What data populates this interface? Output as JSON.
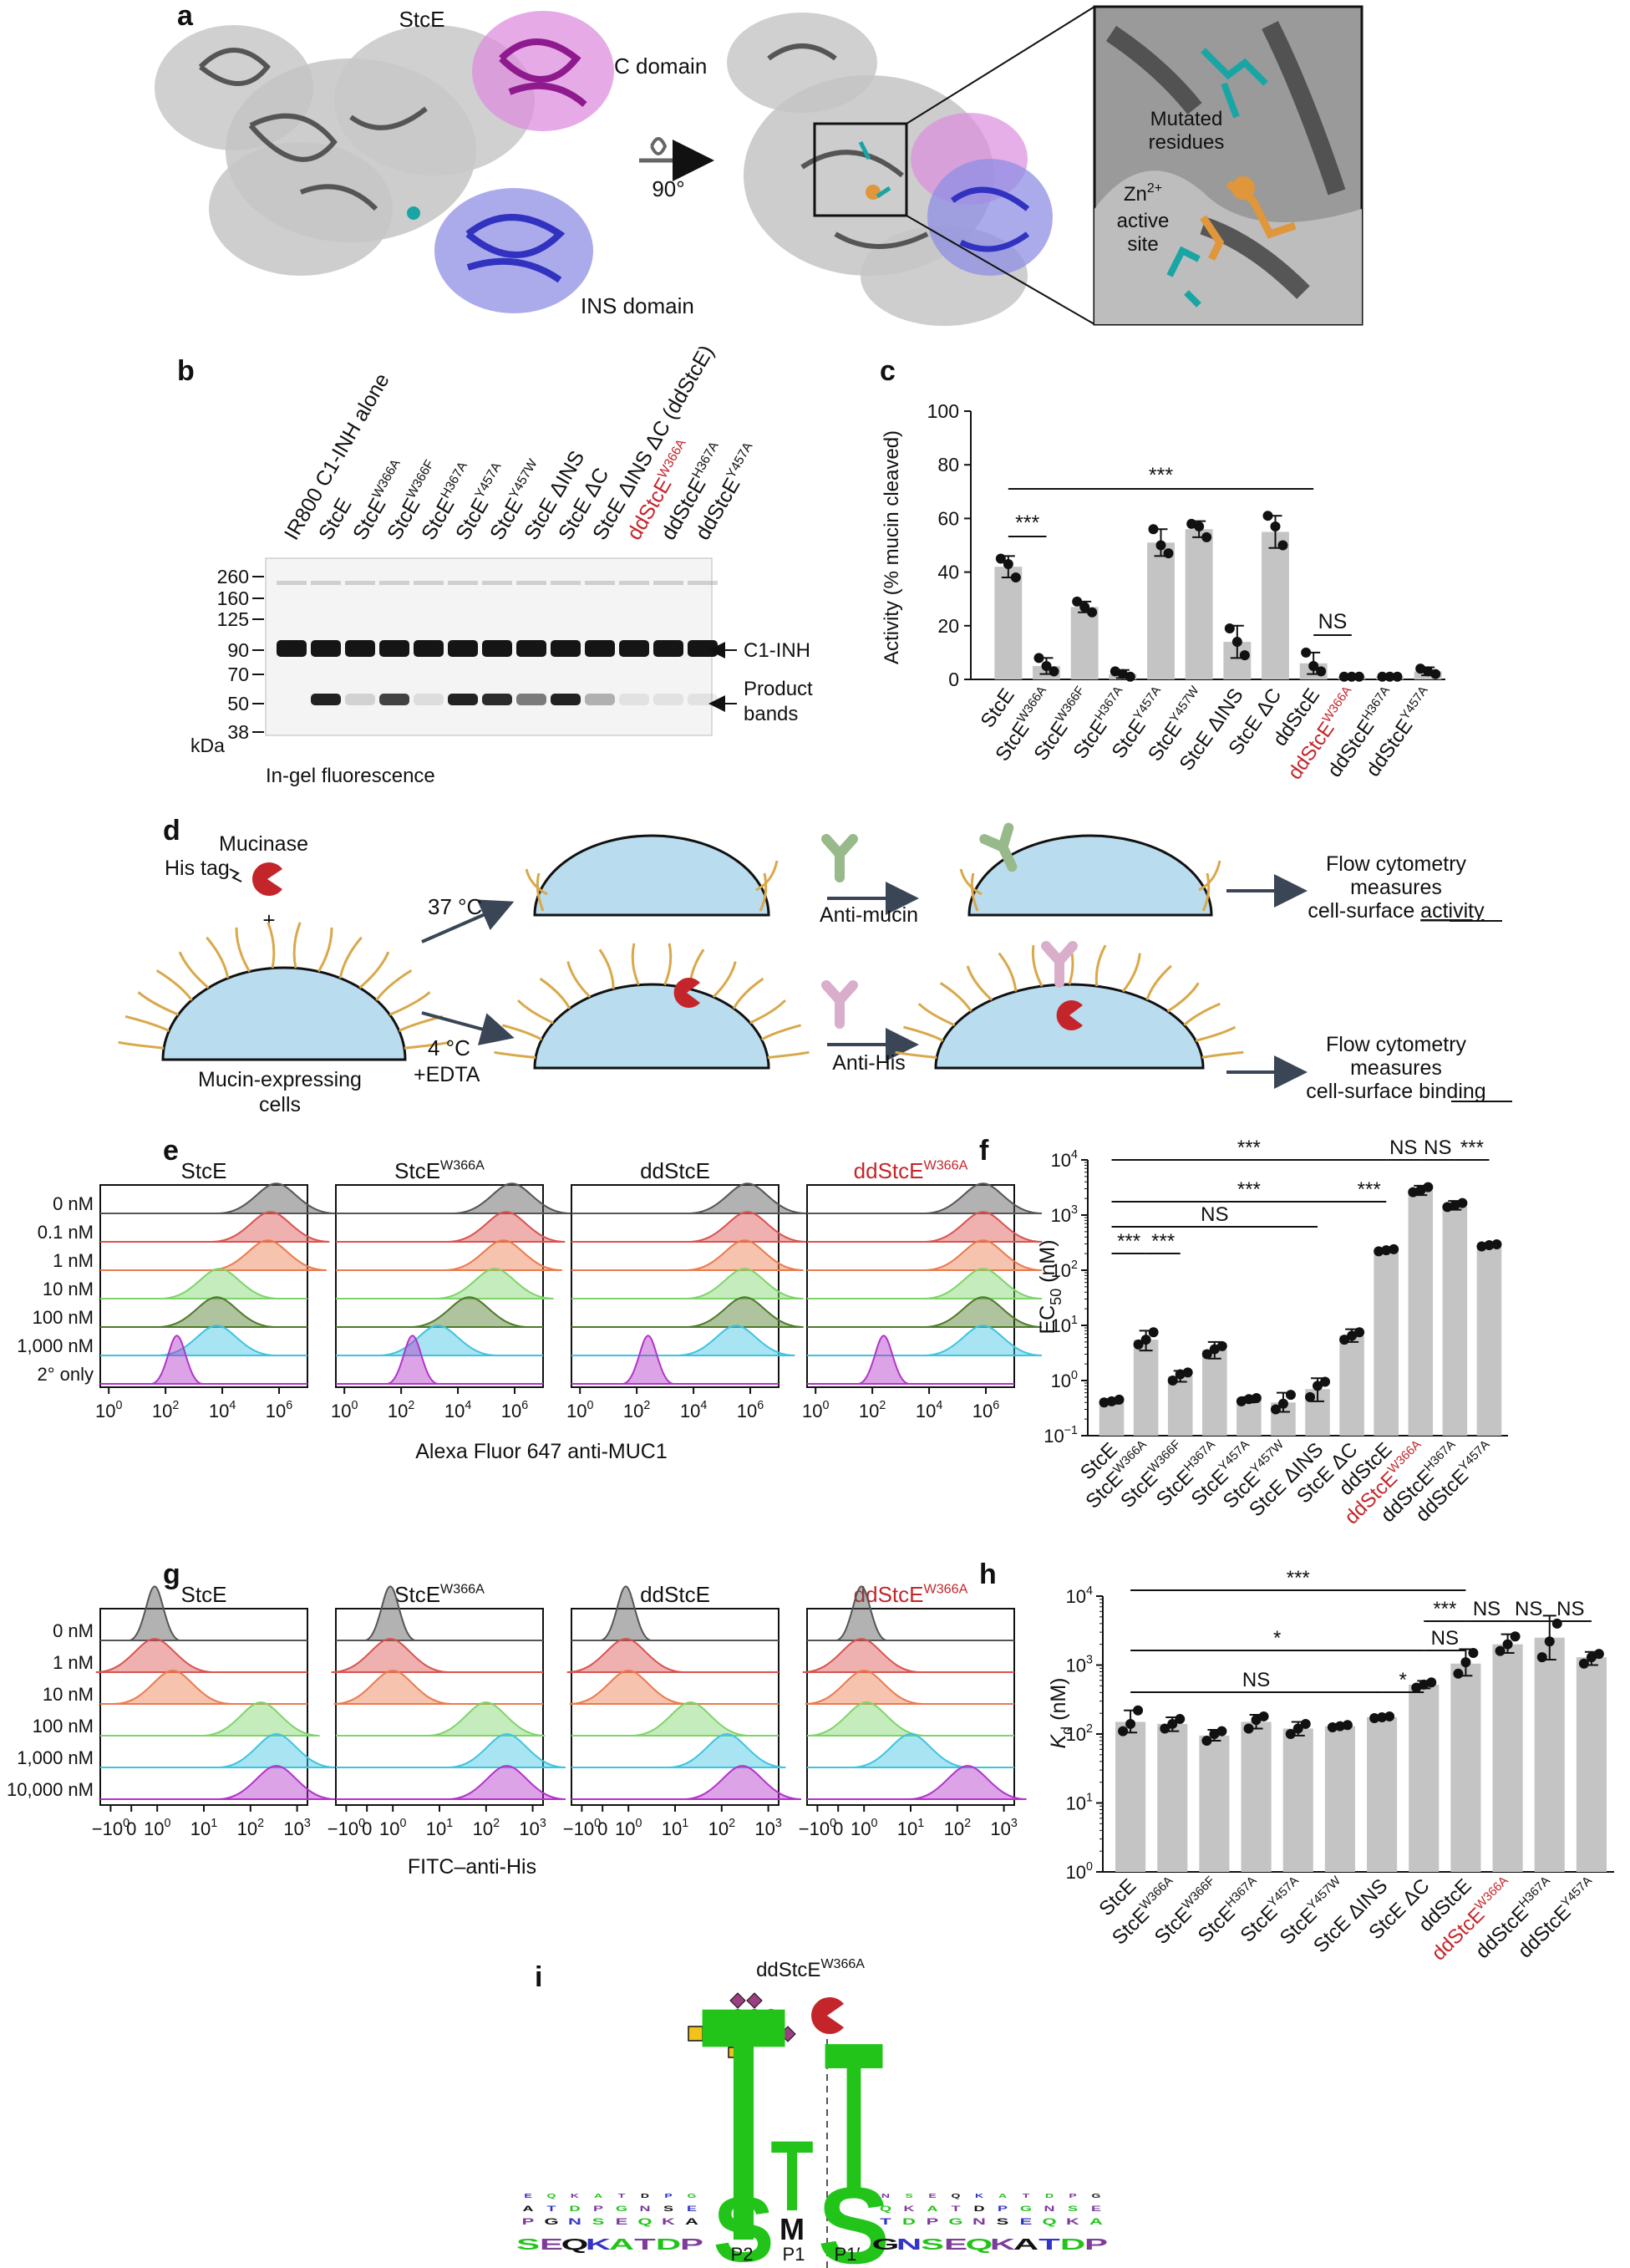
{
  "panels": {
    "a": "a",
    "b": "b",
    "c": "c",
    "d": "d",
    "e": "e",
    "f": "f",
    "g": "g",
    "h": "h",
    "i": "i"
  },
  "panel_a": {
    "protein": "StcE",
    "c_domain": "C domain",
    "ins_domain": "INS domain",
    "rotation": "90°",
    "mutated_line1": "Mutated",
    "mutated_line2": "residues",
    "zn_base": "Zn",
    "zn_sup": "2+",
    "active_line1": "active",
    "active_line2": "site",
    "colors": {
      "c_domain": "#9b1f9b",
      "ins_domain": "#3434c8",
      "mutated": "#1aa5a5",
      "active": "#e0963a",
      "protein": "#555555"
    }
  },
  "panel_b": {
    "lanes": [
      {
        "base": "IR800 C1-INH alone",
        "sup": "",
        "suffix": "",
        "red": false
      },
      {
        "base": "StcE",
        "sup": "",
        "suffix": "",
        "red": false
      },
      {
        "base": "StcE",
        "sup": "W366A",
        "suffix": "",
        "red": false
      },
      {
        "base": "StcE",
        "sup": "W366F",
        "suffix": "",
        "red": false
      },
      {
        "base": "StcE",
        "sup": "H367A",
        "suffix": "",
        "red": false
      },
      {
        "base": "StcE",
        "sup": "Y457A",
        "suffix": "",
        "red": false
      },
      {
        "base": "StcE",
        "sup": "Y457W",
        "suffix": "",
        "red": false
      },
      {
        "base": "StcE ΔINS",
        "sup": "",
        "suffix": "",
        "red": false
      },
      {
        "base": "StcE ΔC",
        "sup": "",
        "suffix": "",
        "red": false
      },
      {
        "base": "StcE ΔINS ΔC (ddStcE)",
        "sup": "",
        "suffix": "",
        "red": false
      },
      {
        "base": "ddStcE",
        "sup": "W366A",
        "suffix": "",
        "red": true
      },
      {
        "base": "ddStcE",
        "sup": "H367A",
        "suffix": "",
        "red": false
      },
      {
        "base": "ddStcE",
        "sup": "Y457A",
        "suffix": "",
        "red": false
      }
    ],
    "markers": [
      "260",
      "160",
      "125",
      "90",
      "70",
      "50",
      "38"
    ],
    "kda": "kDa",
    "c1inh": "C1-INH",
    "product1": "Product",
    "product2": "bands",
    "caption": "In-gel fluorescence",
    "product_intensity": [
      0,
      0.95,
      0.15,
      0.8,
      0.1,
      0.95,
      0.9,
      0.55,
      0.95,
      0.3,
      0.08,
      0.06,
      0.06
    ]
  },
  "panel_c": {
    "ylabel": "Activity (% mucin cleaved)",
    "significance": [
      "***",
      "***",
      "NS"
    ],
    "chart_data": {
      "type": "bar",
      "ylabel": "Activity (% mucin cleaved)",
      "ylim": [
        0,
        100
      ],
      "yticks": [
        "0",
        "20",
        "40",
        "60",
        "80",
        "100"
      ],
      "categories": [
        {
          "base": "StcE",
          "sup": "",
          "red": false
        },
        {
          "base": "StcE",
          "sup": "W366A",
          "red": false
        },
        {
          "base": "StcE",
          "sup": "W366F",
          "red": false
        },
        {
          "base": "StcE",
          "sup": "H367A",
          "red": false
        },
        {
          "base": "StcE",
          "sup": "Y457A",
          "red": false
        },
        {
          "base": "StcE",
          "sup": "Y457W",
          "red": false
        },
        {
          "base": "StcE ΔINS",
          "sup": "",
          "red": false
        },
        {
          "base": "StcE ΔC",
          "sup": "",
          "red": false
        },
        {
          "base": "ddStcE",
          "sup": "",
          "red": false
        },
        {
          "base": "ddStcE",
          "sup": "W366A",
          "red": true
        },
        {
          "base": "ddStcE",
          "sup": "H367A",
          "red": false
        },
        {
          "base": "ddStcE",
          "sup": "Y457A",
          "red": false
        }
      ],
      "values": [
        42,
        5,
        27,
        2,
        51,
        56,
        14,
        55,
        6,
        1,
        1,
        3
      ],
      "errors": [
        4,
        3,
        2,
        1.5,
        5,
        3,
        6,
        6,
        4,
        0.5,
        0.5,
        1.5
      ],
      "points": [
        [
          45,
          43,
          38
        ],
        [
          8,
          5,
          3
        ],
        [
          29,
          27,
          25
        ],
        [
          3,
          2,
          1
        ],
        [
          56,
          50,
          47
        ],
        [
          58,
          57,
          53
        ],
        [
          19,
          14,
          9
        ],
        [
          61,
          57,
          50
        ],
        [
          10,
          5,
          3
        ],
        [
          1,
          1,
          1
        ],
        [
          1,
          1,
          1
        ],
        [
          4,
          3,
          2
        ]
      ],
      "bar_color": "#c4c4c4"
    }
  },
  "panel_d": {
    "mucinase": "Mucinase",
    "his_tag": "His tag",
    "plus": "+",
    "temp_37": "37 °C",
    "temp_4": "4 °C",
    "edta": "+EDTA",
    "cells_line1": "Mucin-expressing",
    "cells_line2": "cells",
    "anti_mucin": "Anti-mucin",
    "anti_his": "Anti-His",
    "flow1_l1": "Flow cytometry",
    "flow1_l2": "measures",
    "flow1_pre": "cell-surface ",
    "flow1_u": "activity",
    "flow2_l1": "Flow cytometry",
    "flow2_l2": "measures",
    "flow2_pre": "cell-surface ",
    "flow2_u": "binding",
    "colors": {
      "cell": "#b9dcee",
      "mucin": "#d9a84a",
      "enzyme": "#c4252a",
      "anti_mucin": "#98b98a",
      "anti_his": "#d8aecb",
      "arrow": "#3a4656"
    }
  },
  "panel_e": {
    "titles": [
      {
        "base": "StcE",
        "sup": "",
        "red": false
      },
      {
        "base": "StcE",
        "sup": "W366A",
        "red": false
      },
      {
        "base": "ddStcE",
        "sup": "",
        "red": false
      },
      {
        "base": "ddStcE",
        "sup": "W366A",
        "red": true
      }
    ],
    "rows": [
      "0 nM",
      "0.1 nM",
      "1 nM",
      "10 nM",
      "100 nM",
      "1,000 nM",
      "2° only"
    ],
    "row_colors": [
      "#555555",
      "#d9534f",
      "#ea7a4d",
      "#7ed46a",
      "#4e7a2a",
      "#3fc4e0",
      "#b233c9"
    ],
    "xticks": [
      {
        "b": "10",
        "s": "0"
      },
      {
        "b": "10",
        "s": "2"
      },
      {
        "b": "10",
        "s": "4"
      },
      {
        "b": "10",
        "s": "6"
      }
    ],
    "xlabel": "Alexa Fluor 647 anti-MUC1",
    "peaks": [
      [
        5.9,
        5.7,
        5.6,
        3.9,
        3.8,
        3.8,
        2.4
      ],
      [
        5.9,
        5.7,
        5.6,
        5.3,
        4.4,
        3.3,
        2.4
      ],
      [
        5.9,
        5.9,
        5.8,
        5.8,
        5.8,
        5.5,
        2.4
      ],
      [
        5.9,
        5.9,
        5.9,
        5.9,
        5.9,
        5.9,
        2.4
      ]
    ]
  },
  "panel_f": {
    "ylabel_base": "EC",
    "ylabel_sub": "50",
    "ylabel_unit": " (nM)",
    "significance": [
      "***",
      "***",
      "NS",
      "***",
      "NS",
      "***",
      "***",
      "NS",
      "***",
      "***",
      "***"
    ],
    "chart_data": {
      "type": "bar",
      "yscale": "log",
      "ylim": [
        0.1,
        10000
      ],
      "yticks": [
        {
          "b": "10",
          "s": "−1"
        },
        {
          "b": "10",
          "s": "0"
        },
        {
          "b": "10",
          "s": "1"
        },
        {
          "b": "10",
          "s": "2"
        },
        {
          "b": "10",
          "s": "3"
        },
        {
          "b": "10",
          "s": "4"
        }
      ],
      "categories": [
        {
          "base": "StcE",
          "sup": "",
          "red": false
        },
        {
          "base": "StcE",
          "sup": "W366A",
          "red": false
        },
        {
          "base": "StcE",
          "sup": "W366F",
          "red": false
        },
        {
          "base": "StcE",
          "sup": "H367A",
          "red": false
        },
        {
          "base": "StcE",
          "sup": "Y457A",
          "red": false
        },
        {
          "base": "StcE",
          "sup": "Y457W",
          "red": false
        },
        {
          "base": "StcE ΔINS",
          "sup": "",
          "red": false
        },
        {
          "base": "StcE ΔC",
          "sup": "",
          "red": false
        },
        {
          "base": "ddStcE",
          "sup": "",
          "red": false
        },
        {
          "base": "ddStcE",
          "sup": "W366A",
          "red": true
        },
        {
          "base": "ddStcE",
          "sup": "H367A",
          "red": false
        },
        {
          "base": "ddStcE",
          "sup": "Y457A",
          "red": false
        }
      ],
      "values": [
        0.42,
        5.5,
        1.2,
        3.6,
        0.45,
        0.4,
        0.7,
        6.5,
        230,
        2800,
        1500,
        280
      ],
      "err_low": [
        0.38,
        3.5,
        0.95,
        2.5,
        0.4,
        0.27,
        0.42,
        5.0,
        215,
        2300,
        1250,
        260
      ],
      "err_high": [
        0.46,
        8.0,
        1.5,
        5.0,
        0.5,
        0.6,
        1.1,
        8.5,
        245,
        3400,
        1800,
        300
      ],
      "points": [
        [
          0.4,
          0.42,
          0.45
        ],
        [
          4.5,
          5.5,
          7.5
        ],
        [
          1.0,
          1.3,
          1.4
        ],
        [
          3.0,
          3.7,
          4.2
        ],
        [
          0.42,
          0.46,
          0.48
        ],
        [
          0.3,
          0.38,
          0.55
        ],
        [
          0.5,
          0.8,
          0.95
        ],
        [
          5.5,
          6.5,
          7.5
        ],
        [
          220,
          230,
          240
        ],
        [
          2600,
          2800,
          3200
        ],
        [
          1400,
          1500,
          1650
        ],
        [
          270,
          285,
          295
        ]
      ],
      "bar_color": "#c4c4c4"
    }
  },
  "panel_g": {
    "titles": [
      {
        "base": "StcE",
        "sup": "",
        "red": false
      },
      {
        "base": "StcE",
        "sup": "W366A",
        "red": false
      },
      {
        "base": "ddStcE",
        "sup": "",
        "red": false
      },
      {
        "base": "ddStcE",
        "sup": "W366A",
        "red": true
      }
    ],
    "rows": [
      "0 nM",
      "1 nM",
      "10 nM",
      "100 nM",
      "1,000 nM",
      "10,000 nM"
    ],
    "row_colors": [
      "#555555",
      "#d9534f",
      "#ea7a4d",
      "#7ed46a",
      "#3fc4e0",
      "#b233c9"
    ],
    "xticks": [
      {
        "b": "−10",
        "s": "0"
      },
      {
        "b": "0",
        "s": ""
      },
      {
        "b": "10",
        "s": "0"
      },
      {
        "b": "10",
        "s": "1"
      },
      {
        "b": "10",
        "s": "2"
      },
      {
        "b": "10",
        "s": "3"
      }
    ],
    "xlabel": "FITC–anti-His",
    "peaks": [
      [
        0.25,
        0.25,
        0.6,
        2.3,
        2.6,
        2.6
      ],
      [
        0.25,
        0.25,
        0.3,
        2.1,
        2.5,
        2.5
      ],
      [
        0.25,
        0.25,
        0.3,
        1.5,
        2.2,
        2.5
      ],
      [
        0.25,
        0.25,
        0.3,
        0.35,
        1.2,
        2.3
      ]
    ]
  },
  "panel_h": {
    "ylabel_base": "K",
    "ylabel_sub": "d",
    "ylabel_unit": " (nM)",
    "significance": [
      "***",
      "***",
      "NS",
      "NS",
      "*",
      "NS",
      "*",
      "NS"
    ],
    "chart_data": {
      "type": "bar",
      "yscale": "log",
      "ylim": [
        1,
        10000
      ],
      "yticks": [
        {
          "b": "10",
          "s": "0"
        },
        {
          "b": "10",
          "s": "1"
        },
        {
          "b": "10",
          "s": "2"
        },
        {
          "b": "10",
          "s": "3"
        },
        {
          "b": "10",
          "s": "4"
        }
      ],
      "categories": [
        {
          "base": "StcE",
          "sup": "",
          "red": false
        },
        {
          "base": "StcE",
          "sup": "W366A",
          "red": false
        },
        {
          "base": "StcE",
          "sup": "W366F",
          "red": false
        },
        {
          "base": "StcE",
          "sup": "H367A",
          "red": false
        },
        {
          "base": "StcE",
          "sup": "Y457A",
          "red": false
        },
        {
          "base": "StcE",
          "sup": "Y457W",
          "red": false
        },
        {
          "base": "StcE ΔINS",
          "sup": "",
          "red": false
        },
        {
          "base": "StcE ΔC",
          "sup": "",
          "red": false
        },
        {
          "base": "ddStcE",
          "sup": "",
          "red": false
        },
        {
          "base": "ddStcE",
          "sup": "W366A",
          "red": true
        },
        {
          "base": "ddStcE",
          "sup": "H367A",
          "red": false
        },
        {
          "base": "ddStcE",
          "sup": "Y457A",
          "red": false
        }
      ],
      "values": [
        150,
        140,
        95,
        150,
        120,
        130,
        175,
        520,
        1050,
        2000,
        2500,
        1300
      ],
      "err_low": [
        105,
        110,
        80,
        120,
        95,
        120,
        165,
        460,
        700,
        1500,
        1200,
        1000
      ],
      "err_high": [
        220,
        175,
        115,
        190,
        150,
        140,
        185,
        590,
        1700,
        2800,
        5200,
        1550
      ],
      "points": [
        [
          110,
          140,
          220
        ],
        [
          120,
          140,
          165
        ],
        [
          80,
          100,
          110
        ],
        [
          120,
          160,
          180
        ],
        [
          100,
          120,
          140
        ],
        [
          125,
          130,
          135
        ],
        [
          170,
          175,
          180
        ],
        [
          470,
          520,
          560
        ],
        [
          750,
          1100,
          1500
        ],
        [
          1600,
          2000,
          2600
        ],
        [
          1300,
          2200,
          4000
        ],
        [
          1050,
          1300,
          1450
        ]
      ],
      "bar_color": "#c4c4c4"
    }
  },
  "panel_i": {
    "enzyme_base": "ddStcE",
    "enzyme_sup": "W366A",
    "positions": [
      "P2",
      "P1",
      "P1′"
    ],
    "logo_main": "T",
    "logo_small": "T",
    "logo_s1": "S",
    "logo_s2": "S",
    "logo_m": "M",
    "colors": {
      "green": "#22c41a",
      "purple": "#7d3c98",
      "black": "#111111",
      "yellow": "#f2c21b",
      "diamond": "#9b3e82"
    }
  }
}
